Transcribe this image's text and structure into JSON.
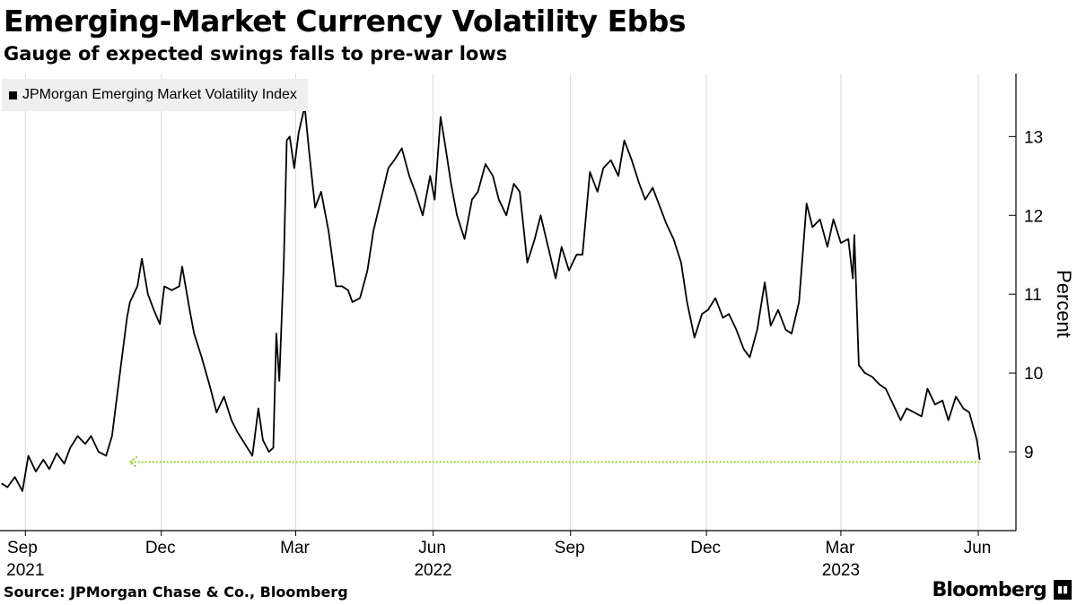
{
  "title": "Emerging-Market Currency Volatility Ebbs",
  "subtitle": "Gauge of expected swings falls to pre-war lows",
  "source": "Source: JPMorgan Chase & Co., Bloomberg",
  "brand": "Bloomberg",
  "colors": {
    "line": "#000000",
    "reference": "#8dd42a",
    "legend_bg": "#efefef",
    "grid": "#d9d9d9"
  },
  "chart_data": {
    "type": "line",
    "ylabel": "Percent",
    "ylim": [
      8,
      13.8
    ],
    "yticks": [
      9,
      10,
      11,
      12,
      13
    ],
    "y_axis_side": "right",
    "grid": "vertical",
    "legend_placement": "top-left",
    "x_range": [
      "2021-08-15",
      "2023-06-13"
    ],
    "xticks": [
      {
        "date": "2021-09-01",
        "label": "Sep",
        "year": "2021"
      },
      {
        "date": "2021-12-01",
        "label": "Dec",
        "year": ""
      },
      {
        "date": "2022-03-01",
        "label": "Mar",
        "year": ""
      },
      {
        "date": "2022-06-01",
        "label": "Jun",
        "year": "2022"
      },
      {
        "date": "2022-09-01",
        "label": "Sep",
        "year": ""
      },
      {
        "date": "2022-12-01",
        "label": "Dec",
        "year": ""
      },
      {
        "date": "2023-03-01",
        "label": "Mar",
        "year": "2023"
      },
      {
        "date": "2023-06-01",
        "label": "Jun",
        "year": ""
      }
    ],
    "series": [
      {
        "name": "JPMorgan Emerging Market Volatility Index",
        "points": [
          [
            "2021-08-16",
            8.6
          ],
          [
            "2021-08-20",
            8.55
          ],
          [
            "2021-08-25",
            8.68
          ],
          [
            "2021-08-30",
            8.5
          ],
          [
            "2021-09-03",
            8.95
          ],
          [
            "2021-09-08",
            8.75
          ],
          [
            "2021-09-13",
            8.9
          ],
          [
            "2021-09-17",
            8.78
          ],
          [
            "2021-09-22",
            8.98
          ],
          [
            "2021-09-27",
            8.85
          ],
          [
            "2021-10-01",
            9.05
          ],
          [
            "2021-10-06",
            9.2
          ],
          [
            "2021-10-11",
            9.1
          ],
          [
            "2021-10-15",
            9.2
          ],
          [
            "2021-10-20",
            9.0
          ],
          [
            "2021-10-25",
            8.95
          ],
          [
            "2021-10-29",
            9.2
          ],
          [
            "2021-11-03",
            9.95
          ],
          [
            "2021-11-08",
            10.7
          ],
          [
            "2021-11-10",
            10.9
          ],
          [
            "2021-11-15",
            11.1
          ],
          [
            "2021-11-18",
            11.45
          ],
          [
            "2021-11-22",
            11.0
          ],
          [
            "2021-11-26",
            10.8
          ],
          [
            "2021-11-30",
            10.62
          ],
          [
            "2021-12-03",
            11.1
          ],
          [
            "2021-12-08",
            11.05
          ],
          [
            "2021-12-13",
            11.1
          ],
          [
            "2021-12-15",
            11.35
          ],
          [
            "2021-12-20",
            10.8
          ],
          [
            "2021-12-23",
            10.5
          ],
          [
            "2021-12-28",
            10.2
          ],
          [
            "2022-01-03",
            9.8
          ],
          [
            "2022-01-07",
            9.5
          ],
          [
            "2022-01-12",
            9.7
          ],
          [
            "2022-01-17",
            9.4
          ],
          [
            "2022-01-21",
            9.25
          ],
          [
            "2022-01-26",
            9.1
          ],
          [
            "2022-01-31",
            8.95
          ],
          [
            "2022-02-04",
            9.55
          ],
          [
            "2022-02-07",
            9.15
          ],
          [
            "2022-02-11",
            9.0
          ],
          [
            "2022-02-14",
            9.05
          ],
          [
            "2022-02-16",
            10.5
          ],
          [
            "2022-02-18",
            9.9
          ],
          [
            "2022-02-21",
            11.4
          ],
          [
            "2022-02-23",
            12.95
          ],
          [
            "2022-02-25",
            13.0
          ],
          [
            "2022-02-28",
            12.6
          ],
          [
            "2022-03-03",
            13.05
          ],
          [
            "2022-03-07",
            13.38
          ],
          [
            "2022-03-10",
            12.8
          ],
          [
            "2022-03-14",
            12.1
          ],
          [
            "2022-03-18",
            12.3
          ],
          [
            "2022-03-23",
            11.8
          ],
          [
            "2022-03-28",
            11.1
          ],
          [
            "2022-04-01",
            11.1
          ],
          [
            "2022-04-05",
            11.05
          ],
          [
            "2022-04-08",
            10.9
          ],
          [
            "2022-04-13",
            10.95
          ],
          [
            "2022-04-18",
            11.3
          ],
          [
            "2022-04-22",
            11.8
          ],
          [
            "2022-04-27",
            12.2
          ],
          [
            "2022-05-02",
            12.6
          ],
          [
            "2022-05-06",
            12.7
          ],
          [
            "2022-05-11",
            12.85
          ],
          [
            "2022-05-16",
            12.5
          ],
          [
            "2022-05-20",
            12.3
          ],
          [
            "2022-05-25",
            12.0
          ],
          [
            "2022-05-30",
            12.5
          ],
          [
            "2022-06-02",
            12.2
          ],
          [
            "2022-06-06",
            13.25
          ],
          [
            "2022-06-09",
            12.9
          ],
          [
            "2022-06-13",
            12.4
          ],
          [
            "2022-06-17",
            12.0
          ],
          [
            "2022-06-22",
            11.7
          ],
          [
            "2022-06-27",
            12.2
          ],
          [
            "2022-07-01",
            12.3
          ],
          [
            "2022-07-06",
            12.65
          ],
          [
            "2022-07-11",
            12.5
          ],
          [
            "2022-07-15",
            12.2
          ],
          [
            "2022-07-20",
            12.0
          ],
          [
            "2022-07-25",
            12.4
          ],
          [
            "2022-07-29",
            12.3
          ],
          [
            "2022-08-03",
            11.4
          ],
          [
            "2022-08-08",
            11.7
          ],
          [
            "2022-08-12",
            12.0
          ],
          [
            "2022-08-17",
            11.6
          ],
          [
            "2022-08-22",
            11.2
          ],
          [
            "2022-08-26",
            11.6
          ],
          [
            "2022-08-31",
            11.3
          ],
          [
            "2022-09-05",
            11.5
          ],
          [
            "2022-09-09",
            11.5
          ],
          [
            "2022-09-14",
            12.55
          ],
          [
            "2022-09-19",
            12.3
          ],
          [
            "2022-09-23",
            12.6
          ],
          [
            "2022-09-28",
            12.7
          ],
          [
            "2022-10-03",
            12.5
          ],
          [
            "2022-10-07",
            12.95
          ],
          [
            "2022-10-12",
            12.7
          ],
          [
            "2022-10-17",
            12.4
          ],
          [
            "2022-10-21",
            12.2
          ],
          [
            "2022-10-26",
            12.35
          ],
          [
            "2022-10-31",
            12.1
          ],
          [
            "2022-11-04",
            11.9
          ],
          [
            "2022-11-09",
            11.7
          ],
          [
            "2022-11-14",
            11.4
          ],
          [
            "2022-11-18",
            10.9
          ],
          [
            "2022-11-23",
            10.45
          ],
          [
            "2022-11-28",
            10.75
          ],
          [
            "2022-12-02",
            10.8
          ],
          [
            "2022-12-07",
            10.95
          ],
          [
            "2022-12-12",
            10.7
          ],
          [
            "2022-12-16",
            10.75
          ],
          [
            "2022-12-21",
            10.55
          ],
          [
            "2022-12-26",
            10.3
          ],
          [
            "2022-12-30",
            10.2
          ],
          [
            "2023-01-04",
            10.55
          ],
          [
            "2023-01-09",
            11.15
          ],
          [
            "2023-01-13",
            10.6
          ],
          [
            "2023-01-18",
            10.8
          ],
          [
            "2023-01-23",
            10.55
          ],
          [
            "2023-01-27",
            10.5
          ],
          [
            "2023-02-01",
            10.9
          ],
          [
            "2023-02-06",
            12.15
          ],
          [
            "2023-02-10",
            11.85
          ],
          [
            "2023-02-15",
            11.95
          ],
          [
            "2023-02-20",
            11.6
          ],
          [
            "2023-02-24",
            11.95
          ],
          [
            "2023-03-01",
            11.65
          ],
          [
            "2023-03-06",
            11.7
          ],
          [
            "2023-03-09",
            11.2
          ],
          [
            "2023-03-10",
            11.75
          ],
          [
            "2023-03-13",
            10.1
          ],
          [
            "2023-03-17",
            10.0
          ],
          [
            "2023-03-22",
            9.95
          ],
          [
            "2023-03-27",
            9.85
          ],
          [
            "2023-03-31",
            9.8
          ],
          [
            "2023-04-05",
            9.6
          ],
          [
            "2023-04-10",
            9.4
          ],
          [
            "2023-04-14",
            9.55
          ],
          [
            "2023-04-19",
            9.5
          ],
          [
            "2023-04-24",
            9.45
          ],
          [
            "2023-04-28",
            9.8
          ],
          [
            "2023-05-03",
            9.6
          ],
          [
            "2023-05-08",
            9.65
          ],
          [
            "2023-05-12",
            9.4
          ],
          [
            "2023-05-17",
            9.7
          ],
          [
            "2023-05-22",
            9.55
          ],
          [
            "2023-05-26",
            9.5
          ],
          [
            "2023-05-31",
            9.15
          ],
          [
            "2023-06-02",
            8.9
          ]
        ]
      }
    ],
    "reference_line": {
      "type": "arrow",
      "y": 8.87,
      "from": "2023-06-02",
      "to": "2021-11-10"
    }
  }
}
